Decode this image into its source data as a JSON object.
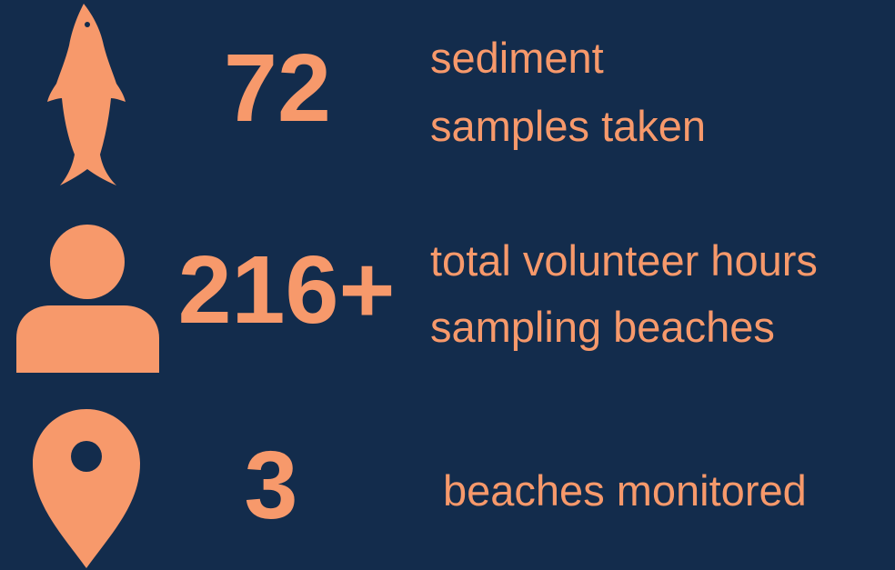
{
  "stats": [
    {
      "value": "72",
      "lines": [
        "sediment",
        "samples taken"
      ]
    },
    {
      "value": "216+",
      "lines": [
        "total volunteer hours",
        "sampling beaches"
      ]
    },
    {
      "value": "3",
      "lines": [
        "beaches monitored"
      ]
    }
  ]
}
